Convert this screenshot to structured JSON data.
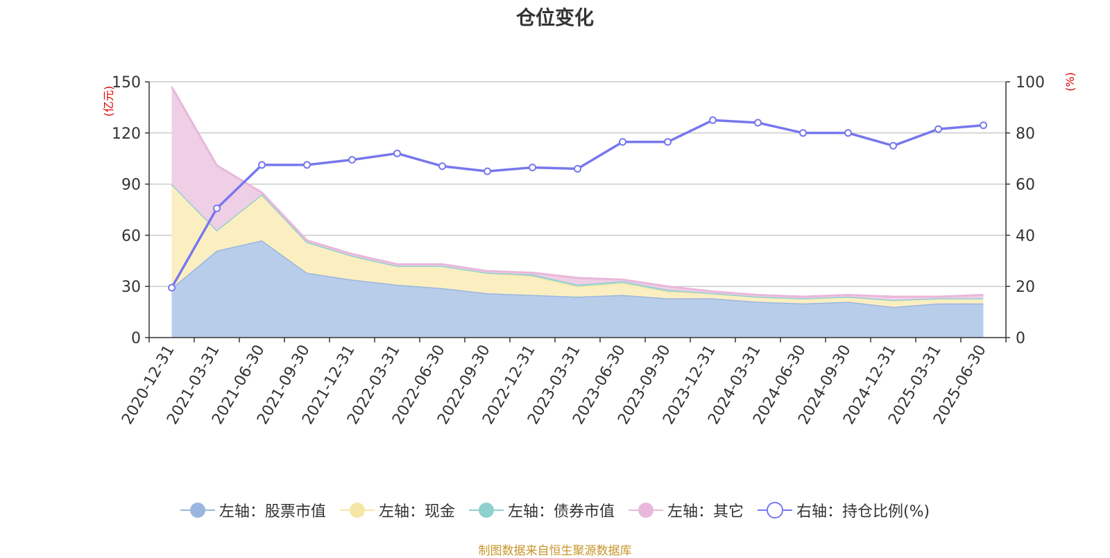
{
  "chart_data": {
    "type": "area",
    "title": "仓位变化",
    "source": "制图数据来自恒生聚源数据库",
    "left_axis_unit": "(亿元)",
    "right_axis_unit": "(%)",
    "left_ylim": [
      0,
      150
    ],
    "left_ticks": [
      0,
      30,
      60,
      90,
      120,
      150
    ],
    "right_ylim": [
      0,
      100
    ],
    "right_ticks": [
      0,
      20,
      40,
      60,
      80,
      100
    ],
    "grid": true,
    "legend_position": "bottom",
    "categories": [
      "2020-12-31",
      "2021-03-31",
      "2021-06-30",
      "2021-09-30",
      "2021-12-31",
      "2022-03-31",
      "2022-06-30",
      "2022-09-30",
      "2022-12-31",
      "2023-03-31",
      "2023-06-30",
      "2023-09-30",
      "2023-12-31",
      "2024-03-31",
      "2024-06-30",
      "2024-09-30",
      "2024-12-31",
      "2025-03-31",
      "2025-06-30"
    ],
    "series": [
      {
        "name": "左轴：股票市值",
        "axis": "left",
        "kind": "stacked-area",
        "color": "#9ab6e0",
        "fill": "#b8cdea",
        "values": [
          29,
          51,
          57,
          38,
          34,
          31,
          29,
          26,
          25,
          24,
          25,
          23,
          23,
          21,
          20,
          21,
          18,
          20,
          20
        ]
      },
      {
        "name": "左轴：现金",
        "axis": "left",
        "kind": "stacked-area",
        "color": "#f6e6a6",
        "fill": "#fbefc1",
        "values": [
          61,
          12,
          27,
          18,
          14,
          11,
          13,
          12,
          11,
          6,
          7,
          4,
          3,
          3,
          3,
          3,
          4,
          3,
          3
        ]
      },
      {
        "name": "左轴：债券市值",
        "axis": "left",
        "kind": "stacked-area",
        "color": "#8fd0cf",
        "fill": "#a6dad8",
        "values": [
          0,
          0,
          0,
          0,
          0,
          0,
          0,
          0,
          1,
          1,
          1,
          1,
          0,
          0,
          0,
          0,
          0,
          0,
          0
        ]
      },
      {
        "name": "左轴：其它",
        "axis": "left",
        "kind": "stacked-area",
        "color": "#e8b8da",
        "fill": "#efcfe5",
        "values": [
          57,
          38,
          1,
          1,
          1,
          1,
          1,
          1,
          1,
          4,
          1,
          2,
          1,
          1,
          1,
          1,
          2,
          1,
          2
        ]
      },
      {
        "name": "右轴：持仓比例(%)",
        "axis": "right",
        "kind": "line",
        "color": "#7777ee",
        "values": [
          19.5,
          50.5,
          67.5,
          67.5,
          69.5,
          72,
          67,
          65,
          66.5,
          66,
          76.5,
          76.5,
          85,
          84,
          80,
          80,
          75,
          81.5,
          83
        ]
      }
    ]
  }
}
